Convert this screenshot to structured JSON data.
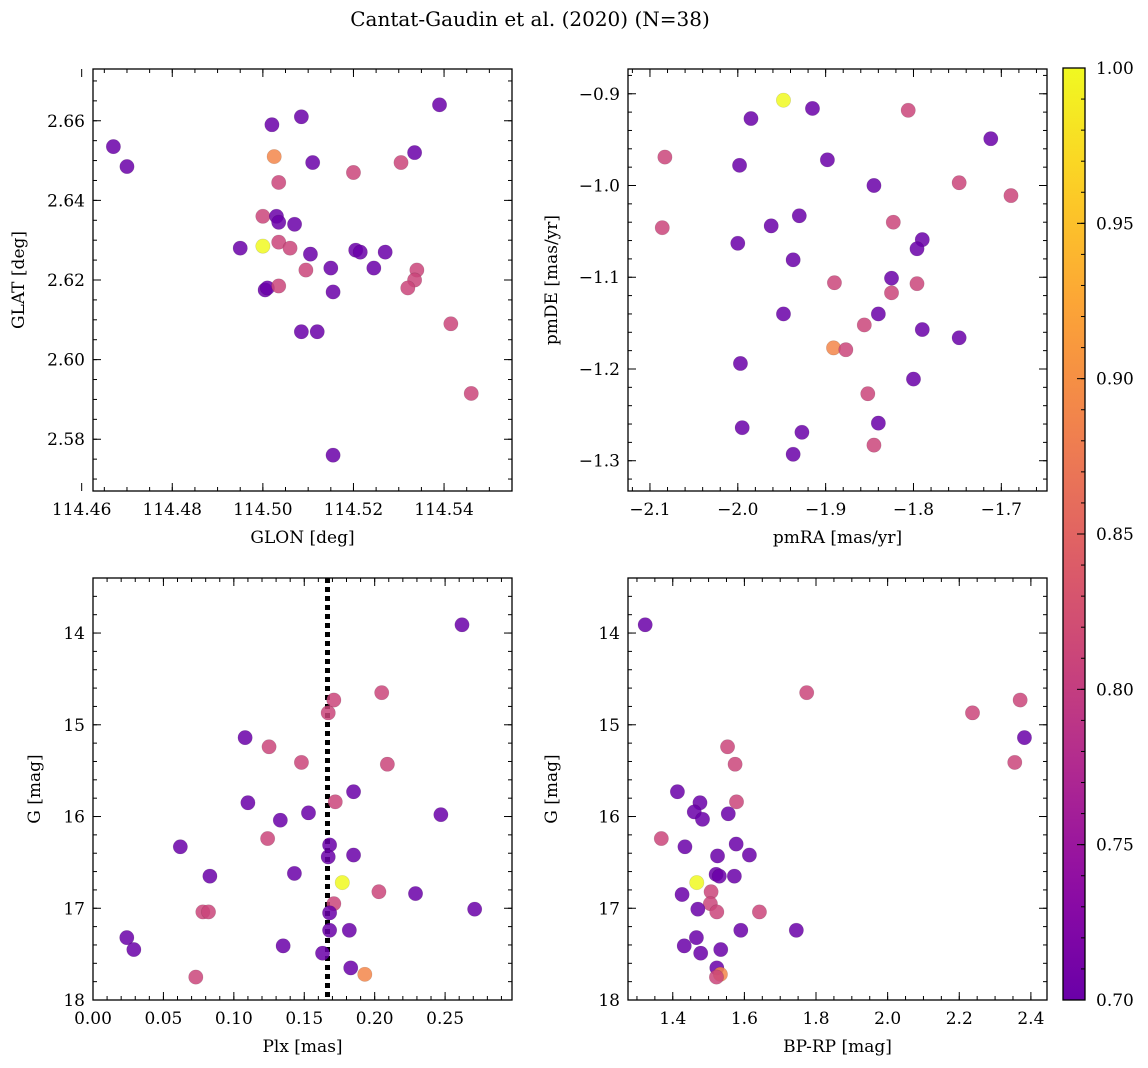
{
  "title": "Cantat-Gaudin et al. (2020) (N=38)",
  "chart_data": [
    {
      "type": "scatter",
      "id": "sky",
      "xlabel": "GLON [deg]",
      "ylabel": "GLAT [deg]",
      "xlim": [
        114.4625,
        114.555
      ],
      "ylim": [
        2.567,
        2.673
      ],
      "yinvert": false,
      "xticks": [
        114.46,
        114.48,
        114.5,
        114.52,
        114.54
      ],
      "xtick_labels": [
        "114.46",
        "114.48",
        "114.50",
        "114.52",
        "114.54"
      ],
      "yticks": [
        2.58,
        2.6,
        2.62,
        2.64,
        2.66
      ],
      "ytick_labels": [
        "2.58",
        "2.60",
        "2.62",
        "2.64",
        "2.66"
      ],
      "xminor": 0.005,
      "yminor": 0.005,
      "points": [
        {
          "x": 114.467,
          "y": 2.6535,
          "c": 0.7
        },
        {
          "x": 114.47,
          "y": 2.6485,
          "c": 0.7
        },
        {
          "x": 114.502,
          "y": 2.659,
          "c": 0.7
        },
        {
          "x": 114.5085,
          "y": 2.661,
          "c": 0.7
        },
        {
          "x": 114.539,
          "y": 2.664,
          "c": 0.7
        },
        {
          "x": 114.5025,
          "y": 2.651,
          "c": 0.89
        },
        {
          "x": 114.511,
          "y": 2.6495,
          "c": 0.7
        },
        {
          "x": 114.5335,
          "y": 2.652,
          "c": 0.7
        },
        {
          "x": 114.5305,
          "y": 2.6495,
          "c": 0.81
        },
        {
          "x": 114.52,
          "y": 2.647,
          "c": 0.81
        },
        {
          "x": 114.5035,
          "y": 2.6445,
          "c": 0.81
        },
        {
          "x": 114.5,
          "y": 2.636,
          "c": 0.81
        },
        {
          "x": 114.503,
          "y": 2.636,
          "c": 0.7
        },
        {
          "x": 114.5035,
          "y": 2.6345,
          "c": 0.7
        },
        {
          "x": 114.507,
          "y": 2.634,
          "c": 0.7
        },
        {
          "x": 114.495,
          "y": 2.628,
          "c": 0.7
        },
        {
          "x": 114.5,
          "y": 2.6285,
          "c": 1.0
        },
        {
          "x": 114.5035,
          "y": 2.6295,
          "c": 0.81
        },
        {
          "x": 114.506,
          "y": 2.628,
          "c": 0.81
        },
        {
          "x": 114.5105,
          "y": 2.6265,
          "c": 0.7
        },
        {
          "x": 114.5205,
          "y": 2.6275,
          "c": 0.7
        },
        {
          "x": 114.5215,
          "y": 2.627,
          "c": 0.7
        },
        {
          "x": 114.527,
          "y": 2.627,
          "c": 0.7
        },
        {
          "x": 114.5095,
          "y": 2.6225,
          "c": 0.81
        },
        {
          "x": 114.515,
          "y": 2.623,
          "c": 0.7
        },
        {
          "x": 114.5245,
          "y": 2.623,
          "c": 0.7
        },
        {
          "x": 114.534,
          "y": 2.6225,
          "c": 0.81
        },
        {
          "x": 114.5335,
          "y": 2.62,
          "c": 0.81
        },
        {
          "x": 114.5005,
          "y": 2.6175,
          "c": 0.7
        },
        {
          "x": 114.501,
          "y": 2.618,
          "c": 0.7
        },
        {
          "x": 114.5035,
          "y": 2.6185,
          "c": 0.81
        },
        {
          "x": 114.532,
          "y": 2.618,
          "c": 0.81
        },
        {
          "x": 114.5155,
          "y": 2.617,
          "c": 0.7
        },
        {
          "x": 114.5415,
          "y": 2.609,
          "c": 0.81
        },
        {
          "x": 114.5085,
          "y": 2.607,
          "c": 0.7
        },
        {
          "x": 114.512,
          "y": 2.607,
          "c": 0.7
        },
        {
          "x": 114.546,
          "y": 2.5915,
          "c": 0.81
        },
        {
          "x": 114.5155,
          "y": 2.576,
          "c": 0.7
        }
      ]
    },
    {
      "type": "scatter",
      "id": "pm",
      "xlabel": "pmRA [mas/yr]",
      "ylabel": "pmDE [mas/yr]",
      "xlim": [
        -2.125,
        -1.648
      ],
      "ylim": [
        -1.333,
        -0.873
      ],
      "yinvert": false,
      "xticks": [
        -2.1,
        -2.0,
        -1.9,
        -1.8,
        -1.7
      ],
      "xtick_labels": [
        "−2.1",
        "−2.0",
        "−1.9",
        "−1.8",
        "−1.7"
      ],
      "yticks": [
        -1.3,
        -1.2,
        -1.1,
        -1.0,
        -0.9
      ],
      "ytick_labels": [
        "−1.3",
        "−1.2",
        "−1.1",
        "−1.0",
        "−0.9"
      ],
      "xminor": 0.02,
      "yminor": 0.02,
      "points": [
        {
          "x": -1.948,
          "y": -0.907,
          "c": 1.0
        },
        {
          "x": -1.985,
          "y": -0.927,
          "c": 0.7
        },
        {
          "x": -1.915,
          "y": -0.916,
          "c": 0.7
        },
        {
          "x": -1.806,
          "y": -0.918,
          "c": 0.81
        },
        {
          "x": -1.712,
          "y": -0.949,
          "c": 0.7
        },
        {
          "x": -2.083,
          "y": -0.969,
          "c": 0.81
        },
        {
          "x": -1.998,
          "y": -0.978,
          "c": 0.7
        },
        {
          "x": -1.898,
          "y": -0.972,
          "c": 0.7
        },
        {
          "x": -1.748,
          "y": -0.997,
          "c": 0.81
        },
        {
          "x": -1.689,
          "y": -1.011,
          "c": 0.81
        },
        {
          "x": -1.845,
          "y": -1.0,
          "c": 0.7
        },
        {
          "x": -1.93,
          "y": -1.033,
          "c": 0.7
        },
        {
          "x": -1.962,
          "y": -1.044,
          "c": 0.7
        },
        {
          "x": -1.823,
          "y": -1.04,
          "c": 0.81
        },
        {
          "x": -2.086,
          "y": -1.046,
          "c": 0.81
        },
        {
          "x": -2.0,
          "y": -1.063,
          "c": 0.7
        },
        {
          "x": -1.79,
          "y": -1.059,
          "c": 0.7
        },
        {
          "x": -1.796,
          "y": -1.069,
          "c": 0.7
        },
        {
          "x": -1.937,
          "y": -1.081,
          "c": 0.7
        },
        {
          "x": -1.825,
          "y": -1.101,
          "c": 0.7
        },
        {
          "x": -1.89,
          "y": -1.106,
          "c": 0.81
        },
        {
          "x": -1.796,
          "y": -1.107,
          "c": 0.81
        },
        {
          "x": -1.825,
          "y": -1.117,
          "c": 0.81
        },
        {
          "x": -1.948,
          "y": -1.14,
          "c": 0.7
        },
        {
          "x": -1.84,
          "y": -1.14,
          "c": 0.7
        },
        {
          "x": -1.856,
          "y": -1.152,
          "c": 0.81
        },
        {
          "x": -1.79,
          "y": -1.157,
          "c": 0.7
        },
        {
          "x": -1.748,
          "y": -1.166,
          "c": 0.7
        },
        {
          "x": -1.891,
          "y": -1.177,
          "c": 0.89
        },
        {
          "x": -1.877,
          "y": -1.179,
          "c": 0.81
        },
        {
          "x": -1.997,
          "y": -1.194,
          "c": 0.7
        },
        {
          "x": -1.8,
          "y": -1.211,
          "c": 0.7
        },
        {
          "x": -1.852,
          "y": -1.227,
          "c": 0.81
        },
        {
          "x": -1.84,
          "y": -1.259,
          "c": 0.7
        },
        {
          "x": -1.995,
          "y": -1.264,
          "c": 0.7
        },
        {
          "x": -1.927,
          "y": -1.269,
          "c": 0.7
        },
        {
          "x": -1.845,
          "y": -1.283,
          "c": 0.81
        },
        {
          "x": -1.937,
          "y": -1.293,
          "c": 0.7
        }
      ]
    },
    {
      "type": "scatter",
      "id": "plx",
      "xlabel": "Plx [mas]",
      "ylabel": "G [mag]",
      "xlim": [
        0.0,
        0.2975
      ],
      "ylim": [
        18.0,
        13.4
      ],
      "yinvert": true,
      "vline": 0.1665,
      "xticks": [
        0.0,
        0.05,
        0.1,
        0.15,
        0.2,
        0.25
      ],
      "xtick_labels": [
        "0.00",
        "0.05",
        "0.10",
        "0.15",
        "0.20",
        "0.25"
      ],
      "yticks": [
        14,
        15,
        16,
        17,
        18
      ],
      "ytick_labels": [
        "14",
        "15",
        "16",
        "17",
        "18"
      ],
      "xminor": 0.01,
      "yminor": 0.2,
      "points": [
        {
          "x": 0.262,
          "y": 13.91,
          "c": 0.7
        },
        {
          "x": 0.205,
          "y": 14.65,
          "c": 0.81
        },
        {
          "x": 0.171,
          "y": 14.73,
          "c": 0.81
        },
        {
          "x": 0.167,
          "y": 14.87,
          "c": 0.81
        },
        {
          "x": 0.108,
          "y": 15.14,
          "c": 0.7
        },
        {
          "x": 0.125,
          "y": 15.24,
          "c": 0.81
        },
        {
          "x": 0.148,
          "y": 15.41,
          "c": 0.81
        },
        {
          "x": 0.209,
          "y": 15.43,
          "c": 0.81
        },
        {
          "x": 0.185,
          "y": 15.73,
          "c": 0.7
        },
        {
          "x": 0.11,
          "y": 15.85,
          "c": 0.7
        },
        {
          "x": 0.172,
          "y": 15.84,
          "c": 0.81
        },
        {
          "x": 0.153,
          "y": 15.96,
          "c": 0.7
        },
        {
          "x": 0.247,
          "y": 15.98,
          "c": 0.7
        },
        {
          "x": 0.133,
          "y": 16.04,
          "c": 0.7
        },
        {
          "x": 0.124,
          "y": 16.24,
          "c": 0.81
        },
        {
          "x": 0.168,
          "y": 16.31,
          "c": 0.7
        },
        {
          "x": 0.062,
          "y": 16.33,
          "c": 0.7
        },
        {
          "x": 0.167,
          "y": 16.44,
          "c": 0.7
        },
        {
          "x": 0.185,
          "y": 16.42,
          "c": 0.7
        },
        {
          "x": 0.143,
          "y": 16.62,
          "c": 0.7
        },
        {
          "x": 0.083,
          "y": 16.65,
          "c": 0.7
        },
        {
          "x": 0.177,
          "y": 16.72,
          "c": 1.0
        },
        {
          "x": 0.203,
          "y": 16.82,
          "c": 0.81
        },
        {
          "x": 0.229,
          "y": 16.84,
          "c": 0.7
        },
        {
          "x": 0.171,
          "y": 16.95,
          "c": 0.81
        },
        {
          "x": 0.271,
          "y": 17.01,
          "c": 0.7
        },
        {
          "x": 0.078,
          "y": 17.04,
          "c": 0.81
        },
        {
          "x": 0.082,
          "y": 17.04,
          "c": 0.81
        },
        {
          "x": 0.168,
          "y": 17.24,
          "c": 0.7
        },
        {
          "x": 0.182,
          "y": 17.24,
          "c": 0.7
        },
        {
          "x": 0.024,
          "y": 17.32,
          "c": 0.7
        },
        {
          "x": 0.135,
          "y": 17.41,
          "c": 0.7
        },
        {
          "x": 0.029,
          "y": 17.45,
          "c": 0.7
        },
        {
          "x": 0.163,
          "y": 17.49,
          "c": 0.7
        },
        {
          "x": 0.183,
          "y": 17.65,
          "c": 0.7
        },
        {
          "x": 0.193,
          "y": 17.72,
          "c": 0.89
        },
        {
          "x": 0.073,
          "y": 17.75,
          "c": 0.81
        },
        {
          "x": 0.168,
          "y": 17.05,
          "c": 0.7
        }
      ]
    },
    {
      "type": "scatter",
      "id": "cmd",
      "xlabel": "BP-RP [mag]",
      "ylabel": "G [mag]",
      "xlim": [
        1.275,
        2.445
      ],
      "ylim": [
        18.0,
        13.4
      ],
      "yinvert": true,
      "xticks": [
        1.4,
        1.6,
        1.8,
        2.0,
        2.2,
        2.4
      ],
      "xtick_labels": [
        "1.4",
        "1.6",
        "1.8",
        "2.0",
        "2.2",
        "2.4"
      ],
      "yticks": [
        14,
        15,
        16,
        17,
        18
      ],
      "ytick_labels": [
        "14",
        "15",
        "16",
        "17",
        "18"
      ],
      "xminor": 0.05,
      "yminor": 0.2,
      "points": [
        {
          "x": 1.323,
          "y": 13.91,
          "c": 0.7
        },
        {
          "x": 1.774,
          "y": 14.65,
          "c": 0.81
        },
        {
          "x": 2.37,
          "y": 14.73,
          "c": 0.81
        },
        {
          "x": 2.237,
          "y": 14.87,
          "c": 0.81
        },
        {
          "x": 2.382,
          "y": 15.14,
          "c": 0.7
        },
        {
          "x": 1.553,
          "y": 15.24,
          "c": 0.81
        },
        {
          "x": 2.355,
          "y": 15.41,
          "c": 0.81
        },
        {
          "x": 1.574,
          "y": 15.43,
          "c": 0.81
        },
        {
          "x": 1.413,
          "y": 15.73,
          "c": 0.7
        },
        {
          "x": 1.578,
          "y": 15.84,
          "c": 0.81
        },
        {
          "x": 1.476,
          "y": 15.85,
          "c": 0.7
        },
        {
          "x": 1.46,
          "y": 15.95,
          "c": 0.7
        },
        {
          "x": 1.555,
          "y": 15.97,
          "c": 0.7
        },
        {
          "x": 1.483,
          "y": 16.03,
          "c": 0.7
        },
        {
          "x": 1.368,
          "y": 16.24,
          "c": 0.81
        },
        {
          "x": 1.577,
          "y": 16.3,
          "c": 0.7
        },
        {
          "x": 1.434,
          "y": 16.33,
          "c": 0.7
        },
        {
          "x": 1.525,
          "y": 16.43,
          "c": 0.7
        },
        {
          "x": 1.614,
          "y": 16.42,
          "c": 0.7
        },
        {
          "x": 1.521,
          "y": 16.63,
          "c": 0.7
        },
        {
          "x": 1.53,
          "y": 16.65,
          "c": 0.7
        },
        {
          "x": 1.572,
          "y": 16.65,
          "c": 0.7
        },
        {
          "x": 1.467,
          "y": 16.72,
          "c": 1.0
        },
        {
          "x": 1.507,
          "y": 16.82,
          "c": 0.81
        },
        {
          "x": 1.426,
          "y": 16.85,
          "c": 0.7
        },
        {
          "x": 1.505,
          "y": 16.95,
          "c": 0.81
        },
        {
          "x": 1.47,
          "y": 17.01,
          "c": 0.7
        },
        {
          "x": 1.523,
          "y": 17.04,
          "c": 0.81
        },
        {
          "x": 1.642,
          "y": 17.04,
          "c": 0.81
        },
        {
          "x": 1.59,
          "y": 17.24,
          "c": 0.7
        },
        {
          "x": 1.745,
          "y": 17.24,
          "c": 0.7
        },
        {
          "x": 1.466,
          "y": 17.32,
          "c": 0.7
        },
        {
          "x": 1.432,
          "y": 17.41,
          "c": 0.7
        },
        {
          "x": 1.534,
          "y": 17.45,
          "c": 0.7
        },
        {
          "x": 1.478,
          "y": 17.49,
          "c": 0.7
        },
        {
          "x": 1.523,
          "y": 17.65,
          "c": 0.7
        },
        {
          "x": 1.533,
          "y": 17.72,
          "c": 0.89
        },
        {
          "x": 1.522,
          "y": 17.75,
          "c": 0.81
        }
      ]
    }
  ],
  "colorbar": {
    "cmap": "plasma",
    "vmin": 0.7,
    "vmax": 1.0,
    "ticks": [
      0.7,
      0.75,
      0.8,
      0.85,
      0.9,
      0.95,
      1.0
    ],
    "tick_labels": [
      "0.70",
      "0.75",
      "0.80",
      "0.85",
      "0.90",
      "0.95",
      "1.00"
    ]
  }
}
